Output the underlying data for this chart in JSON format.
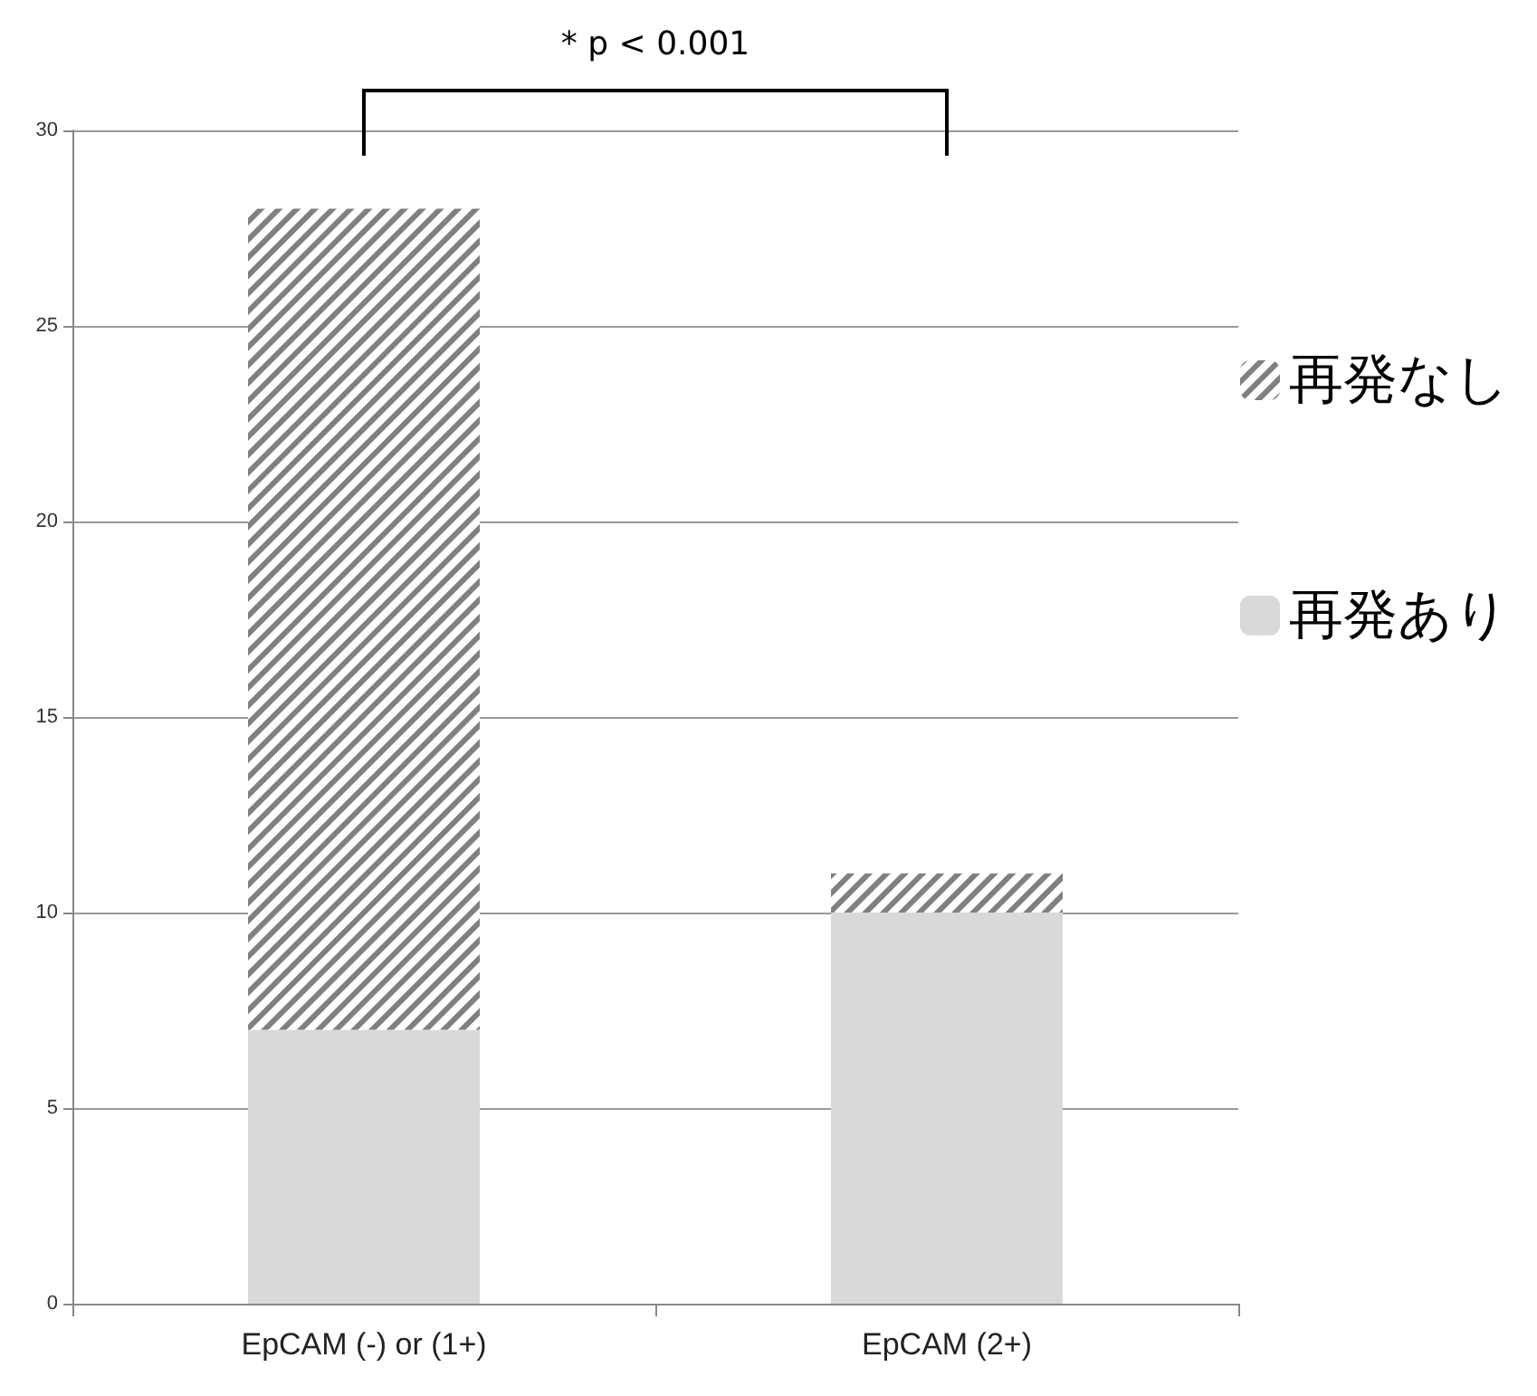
{
  "chart_data": {
    "type": "bar",
    "stacked": true,
    "categories": [
      "EpCAM (-) or (1+)",
      "EpCAM (2+)"
    ],
    "series": [
      {
        "name": "再発あり",
        "color": "#d9d9d9",
        "values": [
          7,
          10
        ]
      },
      {
        "name": "再発なし",
        "color": "#808080",
        "values": [
          21,
          1
        ]
      }
    ],
    "ylim": [
      0,
      30
    ],
    "yticks": [
      0,
      5,
      10,
      15,
      20,
      25,
      30
    ],
    "grid": "y",
    "legend": "right",
    "annotations": [
      "* p < 0.001"
    ]
  }
}
